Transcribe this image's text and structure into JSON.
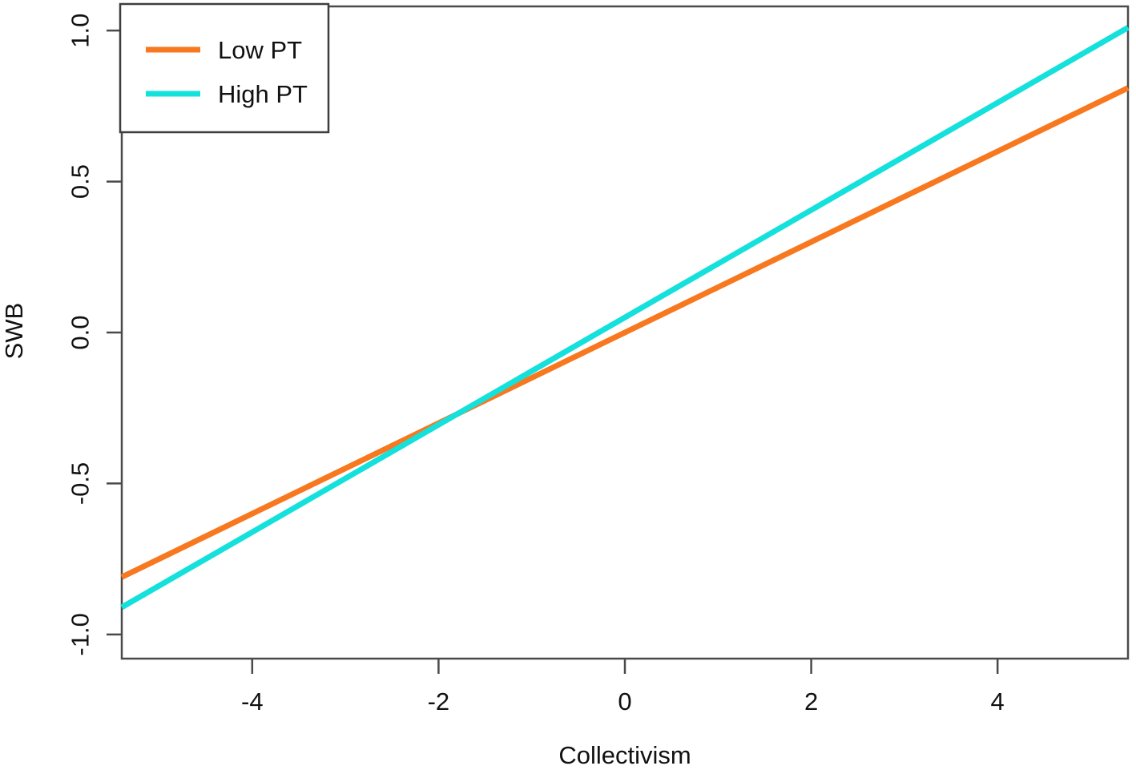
{
  "chart_data": {
    "type": "line",
    "title": "",
    "xlabel": "Collectivism",
    "ylabel": "SWB",
    "xlim": [
      -5.4,
      5.4
    ],
    "ylim": [
      -1.08,
      1.08
    ],
    "x_ticks": [
      -4,
      -2,
      0,
      2,
      4
    ],
    "x_tick_labels": [
      "-4",
      "-2",
      "0",
      "2",
      "4"
    ],
    "y_ticks": [
      -1.0,
      -0.5,
      0.0,
      0.5,
      1.0
    ],
    "y_tick_labels": [
      "-1.0",
      "-0.5",
      "0.0",
      "0.5",
      "1.0"
    ],
    "grid": false,
    "legend": {
      "position": "top-left",
      "entries": [
        {
          "label": "Low PT",
          "color": "#F8781F"
        },
        {
          "label": "High PT",
          "color": "#14E0DC"
        }
      ]
    },
    "series": [
      {
        "name": "Low PT",
        "color": "#F8781F",
        "x": [
          -5.4,
          5.4
        ],
        "y": [
          -0.81,
          0.81
        ]
      },
      {
        "name": "High PT",
        "color": "#14E0DC",
        "x": [
          -5.4,
          5.4
        ],
        "y": [
          -0.91,
          1.01
        ]
      }
    ]
  },
  "colors": {
    "axis": "#4a4a4a",
    "text": "#111111",
    "background": "#ffffff",
    "legend_border": "#3d3d3d"
  }
}
